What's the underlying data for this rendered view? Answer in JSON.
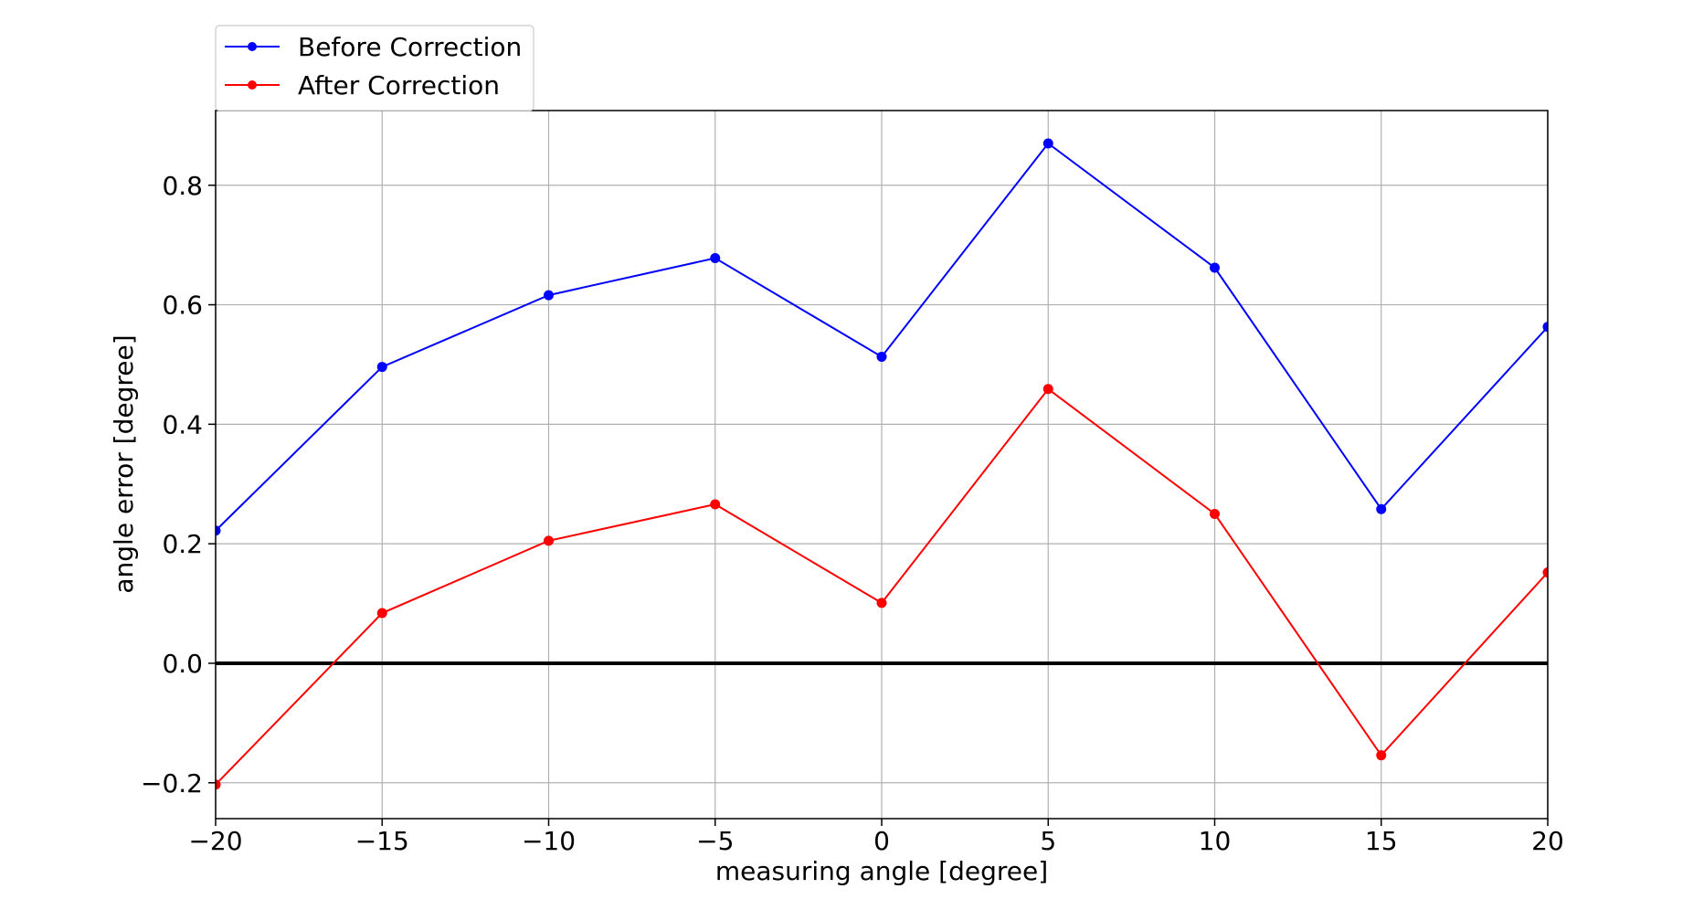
{
  "chart_data": {
    "type": "line",
    "xlabel": "measuring angle [degree]",
    "ylabel": "angle error [degree]",
    "xlim": [
      -20,
      20
    ],
    "ylim": [
      -0.26,
      0.925
    ],
    "x": [
      -20,
      -15,
      -10,
      -5,
      0,
      5,
      10,
      15,
      20
    ],
    "xticks": [
      -20,
      -15,
      -10,
      -5,
      0,
      5,
      10,
      15,
      20
    ],
    "xtick_labels": [
      "−20",
      "−15",
      "−10",
      "−5",
      "0",
      "5",
      "10",
      "15",
      "20"
    ],
    "yticks": [
      -0.2,
      0.0,
      0.2,
      0.4,
      0.6,
      0.8
    ],
    "ytick_labels": [
      "−0.2",
      "0.0",
      "0.2",
      "0.4",
      "0.6",
      "0.8"
    ],
    "grid": true,
    "legend_position": "top-left, above plot",
    "reference_line": {
      "y": 0.0,
      "color": "#000000"
    },
    "series": [
      {
        "name": "Before Correction",
        "color": "#0000ff",
        "values": [
          0.222,
          0.496,
          0.616,
          0.678,
          0.513,
          0.87,
          0.662,
          0.258,
          0.563
        ]
      },
      {
        "name": "After Correction",
        "color": "#ff0000",
        "values": [
          -0.203,
          0.084,
          0.205,
          0.266,
          0.101,
          0.459,
          0.25,
          -0.154,
          0.152
        ]
      }
    ]
  }
}
